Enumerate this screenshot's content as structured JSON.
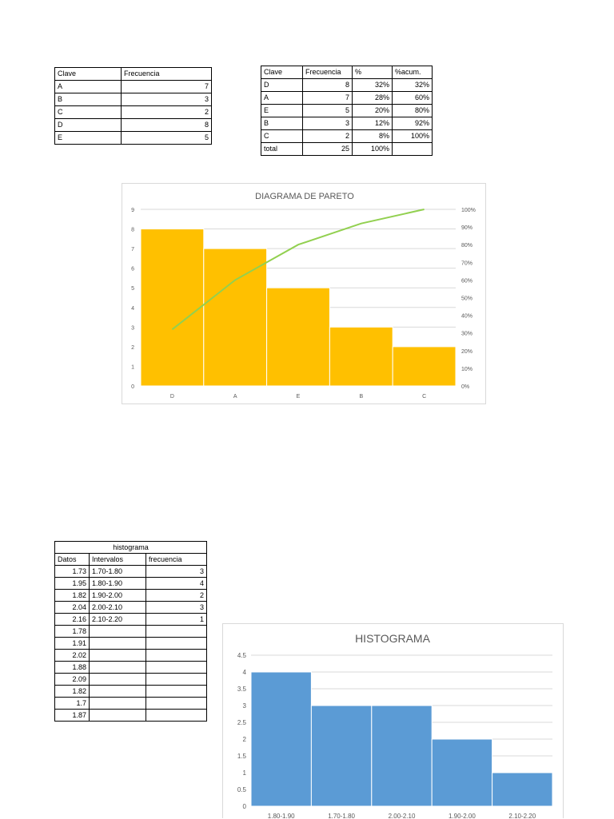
{
  "freq_table": {
    "headers": [
      "Clave",
      "Frecuencia"
    ],
    "rows": [
      [
        "A",
        "7"
      ],
      [
        "B",
        "3"
      ],
      [
        "C",
        "2"
      ],
      [
        "D",
        "8"
      ],
      [
        "E",
        "5"
      ]
    ]
  },
  "pareto_table": {
    "headers": [
      "Clave",
      "Frecuencia",
      "%",
      "%acum."
    ],
    "rows": [
      [
        "D",
        "8",
        "32%",
        "32%"
      ],
      [
        "A",
        "7",
        "28%",
        "60%"
      ],
      [
        "E",
        "5",
        "20%",
        "80%"
      ],
      [
        "B",
        "3",
        "12%",
        "92%"
      ],
      [
        "C",
        "2",
        "8%",
        "100%"
      ]
    ],
    "total": [
      "total",
      "25",
      "100%",
      ""
    ]
  },
  "hist_table": {
    "title": "histograma",
    "headers": [
      "Datos",
      "Intervalos",
      "frecuencia"
    ],
    "rows": [
      [
        "1.73",
        "1.70-1.80",
        "3"
      ],
      [
        "1.95",
        "1.80-1.90",
        "4"
      ],
      [
        "1.82",
        "1.90-2.00",
        "2"
      ],
      [
        "2.04",
        "2.00-2.10",
        "3"
      ],
      [
        "2.16",
        "2.10-2.20",
        "1"
      ],
      [
        "1.78",
        "",
        ""
      ],
      [
        "1.91",
        "",
        ""
      ],
      [
        "2.02",
        "",
        ""
      ],
      [
        "1.88",
        "",
        ""
      ],
      [
        "2.09",
        "",
        ""
      ],
      [
        "1.82",
        "",
        ""
      ],
      [
        "1.7",
        "",
        ""
      ],
      [
        "1.87",
        "",
        ""
      ]
    ]
  },
  "chart_data": [
    {
      "type": "bar",
      "title": "DIAGRAMA DE PARETO",
      "categories": [
        "D",
        "A",
        "E",
        "B",
        "C"
      ],
      "series": [
        {
          "values": [
            8,
            7,
            5,
            3,
            2
          ],
          "color": "#FFC000"
        },
        {
          "values": [
            32,
            60,
            80,
            92,
            100
          ],
          "color": "#92D050",
          "axis": "secondary",
          "style": "line"
        }
      ],
      "ylim": [
        0,
        9
      ],
      "yticks": [
        "0",
        "1",
        "2",
        "3",
        "4",
        "5",
        "6",
        "7",
        "8",
        "9"
      ],
      "y2lim": [
        0,
        100
      ],
      "y2ticks": [
        "0%",
        "10%",
        "20%",
        "30%",
        "40%",
        "50%",
        "60%",
        "70%",
        "80%",
        "90%",
        "100%"
      ],
      "grid": true
    },
    {
      "type": "bar",
      "title": "HISTOGRAMA",
      "categories": [
        "1.80-1.90",
        "1.70-1.80",
        "2.00-2.10",
        "1.90-2.00",
        "2.10-2.20"
      ],
      "values": [
        4,
        3,
        3,
        2,
        1
      ],
      "color": "#5B9BD5",
      "ylim": [
        0,
        4.5
      ],
      "yticks": [
        "0",
        "0.5",
        "1",
        "1.5",
        "2",
        "2.5",
        "3",
        "3.5",
        "4",
        "4.5"
      ],
      "grid": true
    }
  ]
}
